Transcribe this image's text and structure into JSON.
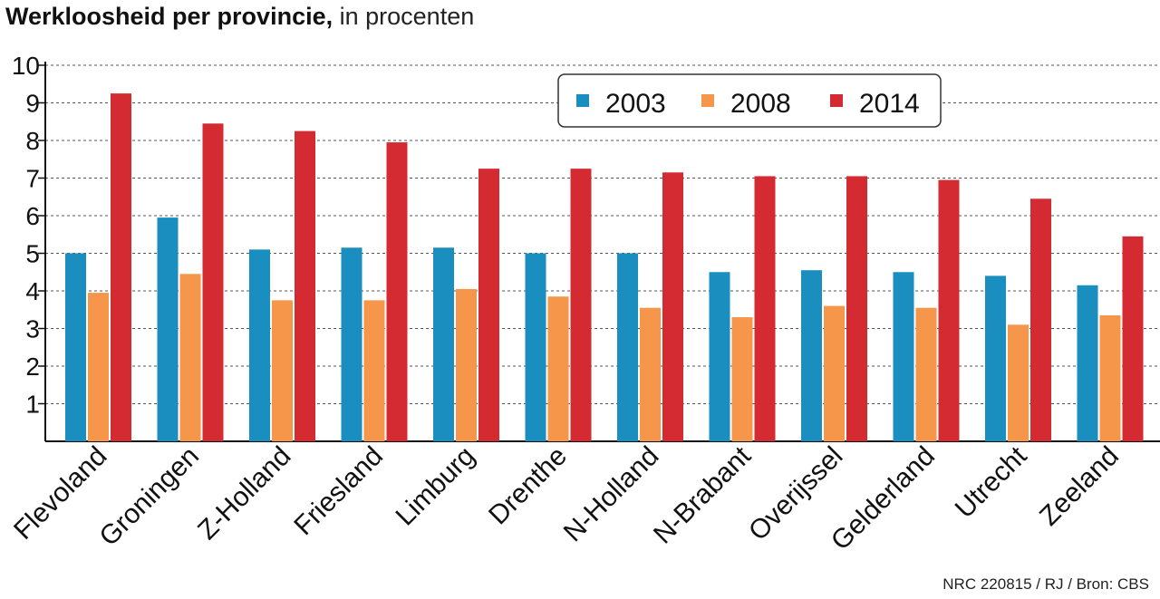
{
  "title_bold": "Werkloosheid per provincie,",
  "title_rest": "in procenten",
  "source": "NRC 220815 / RJ / Bron: CBS",
  "chart_data": {
    "type": "bar",
    "title": "Werkloosheid per provincie, in procenten",
    "ylim": [
      0,
      10
    ],
    "yticks": [
      1,
      2,
      3,
      4,
      5,
      6,
      7,
      8,
      9,
      10
    ],
    "grid": true,
    "legend_position": "top-right",
    "categories": [
      "Flevoland",
      "Groningen",
      "Z-Holland",
      "Friesland",
      "Limburg",
      "Drenthe",
      "N-Holland",
      "N-Brabant",
      "Overijssel",
      "Gelderland",
      "Utrecht",
      "Zeeland"
    ],
    "series": [
      {
        "name": "2003",
        "color": "#1a8fbf",
        "values": [
          5.0,
          5.95,
          5.1,
          5.15,
          5.15,
          5.0,
          5.0,
          4.5,
          4.55,
          4.5,
          4.4,
          4.15
        ]
      },
      {
        "name": "2008",
        "color": "#f5964b",
        "values": [
          3.95,
          4.45,
          3.75,
          3.75,
          4.05,
          3.85,
          3.55,
          3.3,
          3.6,
          3.55,
          3.1,
          3.35
        ]
      },
      {
        "name": "2014",
        "color": "#d42a32",
        "values": [
          9.25,
          8.45,
          8.25,
          7.95,
          7.25,
          7.25,
          7.15,
          7.05,
          7.05,
          6.95,
          6.45,
          5.45
        ]
      }
    ]
  }
}
